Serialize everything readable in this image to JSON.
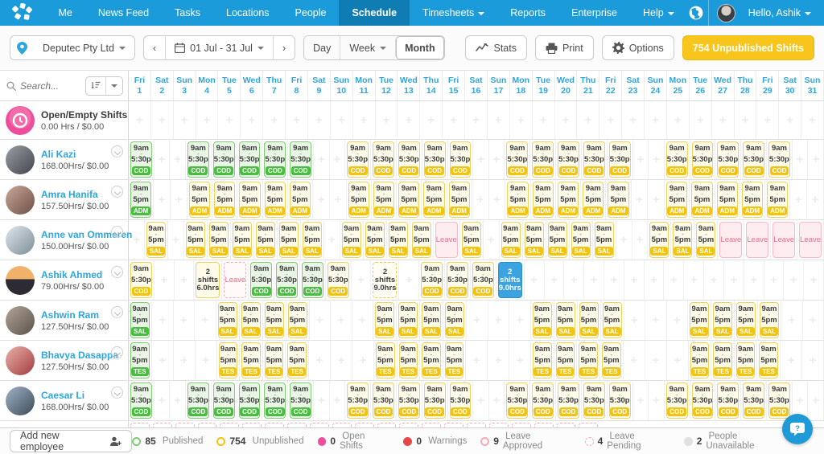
{
  "colors": {
    "nav_blue": "#1b9bd9",
    "active_tab_blue": "#0f7cb4",
    "accent_blue": "#2fa5de",
    "published_green": "#49bd3f",
    "unpublished_yellow": "#f2c40f",
    "leave_pink": "#ee6e89",
    "open_shifts_pink": "#ee4d9b",
    "selected_blue": "#3ba4e0",
    "unpublished_button_yellow": "#f8c51c"
  },
  "nav": {
    "items": [
      {
        "label": "Me"
      },
      {
        "label": "News Feed"
      },
      {
        "label": "Tasks"
      },
      {
        "label": "Locations"
      },
      {
        "label": "People"
      },
      {
        "label": "Schedule",
        "active": true
      },
      {
        "label": "Timesheets",
        "dropdown": true
      },
      {
        "label": "Reports"
      },
      {
        "label": "Enterprise"
      }
    ],
    "help": "Help",
    "greeting": "Hello, Ashik"
  },
  "toolbar": {
    "location": "Deputec Pty Ltd",
    "date_range": "01 Jul - 31 Jul",
    "views": [
      {
        "label": "Day"
      },
      {
        "label": "Week",
        "dropdown": true
      },
      {
        "label": "Month",
        "active": true
      }
    ],
    "stats": "Stats",
    "print": "Print",
    "options": "Options",
    "unpublished": "754 Unpublished Shifts"
  },
  "search": {
    "placeholder": "Search..."
  },
  "calendar": {
    "days": [
      {
        "dow": "Fri",
        "date": 1
      },
      {
        "dow": "Sat",
        "date": 2
      },
      {
        "dow": "Sun",
        "date": 3
      },
      {
        "dow": "Mon",
        "date": 4
      },
      {
        "dow": "Tue",
        "date": 5
      },
      {
        "dow": "Wed",
        "date": 6
      },
      {
        "dow": "Thu",
        "date": 7
      },
      {
        "dow": "Fri",
        "date": 8
      },
      {
        "dow": "Sat",
        "date": 9
      },
      {
        "dow": "Sun",
        "date": 10
      },
      {
        "dow": "Mon",
        "date": 11
      },
      {
        "dow": "Tue",
        "date": 12
      },
      {
        "dow": "Wed",
        "date": 13
      },
      {
        "dow": "Thu",
        "date": 14
      },
      {
        "dow": "Fri",
        "date": 15
      },
      {
        "dow": "Sat",
        "date": 16
      },
      {
        "dow": "Sun",
        "date": 17
      },
      {
        "dow": "Mon",
        "date": 18
      },
      {
        "dow": "Tue",
        "date": 19
      },
      {
        "dow": "Wed",
        "date": 20
      },
      {
        "dow": "Thu",
        "date": 21
      },
      {
        "dow": "Fri",
        "date": 22
      },
      {
        "dow": "Sat",
        "date": 23
      },
      {
        "dow": "Sun",
        "date": 24
      },
      {
        "dow": "Mon",
        "date": 25
      },
      {
        "dow": "Tue",
        "date": 26
      },
      {
        "dow": "Wed",
        "date": 27
      },
      {
        "dow": "Thu",
        "date": 28
      },
      {
        "dow": "Fri",
        "date": 29
      },
      {
        "dow": "Sat",
        "date": 30
      },
      {
        "dow": "Sun",
        "date": 31
      }
    ]
  },
  "rows": [
    {
      "type": "open",
      "name": "Open/Empty Shifts",
      "hours": "0.00 Hrs / $0.00",
      "pub": [],
      "unpub": [],
      "specials": []
    },
    {
      "type": "employee",
      "name": "Ali Kazi",
      "hours": "168.00Hrs/ $0.00",
      "shift": {
        "start": "9am",
        "end": "5:30p",
        "area": "COD"
      },
      "pub": [
        1,
        4,
        5,
        6,
        7,
        8
      ],
      "unpub": [
        11,
        12,
        13,
        14,
        15,
        18,
        19,
        20,
        21,
        22,
        25,
        26,
        27,
        28,
        29
      ],
      "specials": []
    },
    {
      "type": "employee",
      "name": "Amra Hanifa",
      "hours": "157.50Hrs/ $0.00",
      "shift": {
        "start": "9am",
        "end": "5pm",
        "area": "ADM"
      },
      "pub": [
        1
      ],
      "unpub": [
        4,
        5,
        6,
        7,
        8,
        11,
        12,
        13,
        14,
        15,
        18,
        19,
        20,
        21,
        22,
        25,
        26,
        27,
        28,
        29
      ],
      "specials": []
    },
    {
      "type": "employee",
      "name": "Anne van Ommeren",
      "hours": "150.00Hrs/ $0.00",
      "shift": {
        "start": "9am",
        "end": "5pm",
        "area": "SAL"
      },
      "pub": [],
      "unpub": [
        2,
        4,
        5,
        6,
        7,
        8,
        9,
        11,
        12,
        13,
        14,
        16,
        18,
        19,
        20,
        21,
        22,
        25,
        26,
        27
      ],
      "specials": [
        {
          "day": 15,
          "kind": "leave",
          "lines": [
            "Leave"
          ]
        },
        {
          "day": 28,
          "kind": "leave",
          "lines": [
            "Leave"
          ]
        },
        {
          "day": 29,
          "kind": "leave",
          "lines": [
            "Leave"
          ]
        },
        {
          "day": 30,
          "kind": "leave",
          "lines": [
            "Leave"
          ]
        },
        {
          "day": 31,
          "kind": "leave",
          "lines": [
            "Leave"
          ]
        }
      ]
    },
    {
      "type": "employee",
      "name": "Ashik Ahmed",
      "hours": "79.00Hrs/ $0.00",
      "shift": {
        "start": "9am",
        "end": "5:30p",
        "area": "COD"
      },
      "pub": [
        6,
        7,
        8
      ],
      "unpub": [
        1,
        9,
        13,
        14,
        15
      ],
      "specials": [
        {
          "day": 4,
          "kind": "multi",
          "lines": [
            "2",
            "shifts",
            "6.0hrs"
          ]
        },
        {
          "day": 5,
          "kind": "lp",
          "lines": [
            "Leave"
          ]
        },
        {
          "day": 11,
          "kind": "md",
          "lines": [
            "2",
            "shifts",
            "9.0hrs"
          ]
        },
        {
          "day": 16,
          "kind": "sel",
          "lines": [
            "2",
            "shifts",
            "9.0hrs"
          ]
        }
      ]
    },
    {
      "type": "employee",
      "name": "Ashwin Ram",
      "hours": "127.50Hrs/ $0.00",
      "shift": {
        "start": "9am",
        "end": "5pm",
        "area": "SAL"
      },
      "pub": [
        1
      ],
      "unpub": [
        5,
        6,
        7,
        8,
        12,
        13,
        14,
        15,
        19,
        20,
        21,
        22,
        26,
        27,
        28,
        29
      ],
      "specials": []
    },
    {
      "type": "employee",
      "name": "Bhavya Dasappa",
      "hours": "127.50Hrs/ $0.00",
      "shift": {
        "start": "9am",
        "end": "5pm",
        "area": "TES"
      },
      "pub": [
        1
      ],
      "unpub": [
        5,
        6,
        7,
        8,
        12,
        13,
        14,
        15,
        19,
        20,
        21,
        22,
        26,
        27,
        28,
        29
      ],
      "specials": []
    },
    {
      "type": "employee",
      "name": "Caesar Li",
      "hours": "168.00Hrs/ $0.00",
      "shift": {
        "start": "9am",
        "end": "5:30p",
        "area": "COD"
      },
      "pub": [
        1,
        4,
        5,
        6,
        7,
        8
      ],
      "unpub": [
        11,
        12,
        13,
        14,
        15,
        18,
        19,
        20,
        21,
        22,
        25,
        26,
        27,
        28,
        29
      ],
      "specials": []
    }
  ],
  "cutoff_pending_days": [
    1,
    2,
    3,
    4,
    5,
    6,
    7,
    8,
    9,
    10,
    11,
    12,
    13,
    14,
    15,
    16,
    17,
    18,
    19,
    20,
    21
  ],
  "footer": {
    "add_employee": "Add new employee",
    "legend": [
      {
        "count": "85",
        "label": "Published",
        "swatch": "green-outline"
      },
      {
        "count": "754",
        "label": "Unpublished",
        "swatch": "yellow-outline"
      },
      {
        "count": "0",
        "label": "Open Shifts",
        "swatch": "pink-solid"
      },
      {
        "count": "0",
        "label": "Warnings",
        "swatch": "red-solid"
      },
      {
        "count": "9",
        "label": "Leave Approved",
        "swatch": "pink-outline"
      },
      {
        "count": "4",
        "label": "Leave Pending",
        "swatch": "pink-dashed"
      },
      {
        "count": "2",
        "label": "People Unavailable",
        "swatch": "gray-solid"
      }
    ]
  }
}
